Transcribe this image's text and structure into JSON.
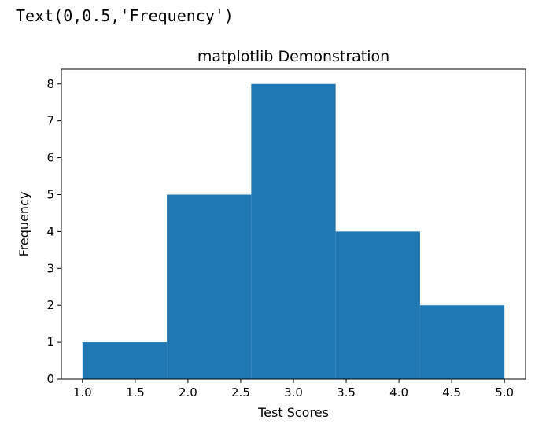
{
  "output": {
    "text": "Text(0,0.5,'Frequency')"
  },
  "chart_data": {
    "type": "bar",
    "title": "matplotlib Demonstration",
    "xlabel": "Test Scores",
    "ylabel": "Frequency",
    "xlim": [
      0.8,
      5.2
    ],
    "ylim": [
      0,
      8.4
    ],
    "bin_edges": [
      1.0,
      1.8,
      2.6,
      3.4,
      4.2,
      5.0
    ],
    "values": [
      1,
      5,
      8,
      4,
      2
    ],
    "bar_color": "#1f77b4",
    "x_ticks": [
      1.0,
      1.5,
      2.0,
      2.5,
      3.0,
      3.5,
      4.0,
      4.5,
      5.0
    ],
    "x_tick_labels": [
      "1.0",
      "1.5",
      "2.0",
      "2.5",
      "3.0",
      "3.5",
      "4.0",
      "4.5",
      "5.0"
    ],
    "y_ticks": [
      0,
      1,
      2,
      3,
      4,
      5,
      6,
      7,
      8
    ],
    "y_tick_labels": [
      "0",
      "1",
      "2",
      "3",
      "4",
      "5",
      "6",
      "7",
      "8"
    ],
    "grid": false
  }
}
